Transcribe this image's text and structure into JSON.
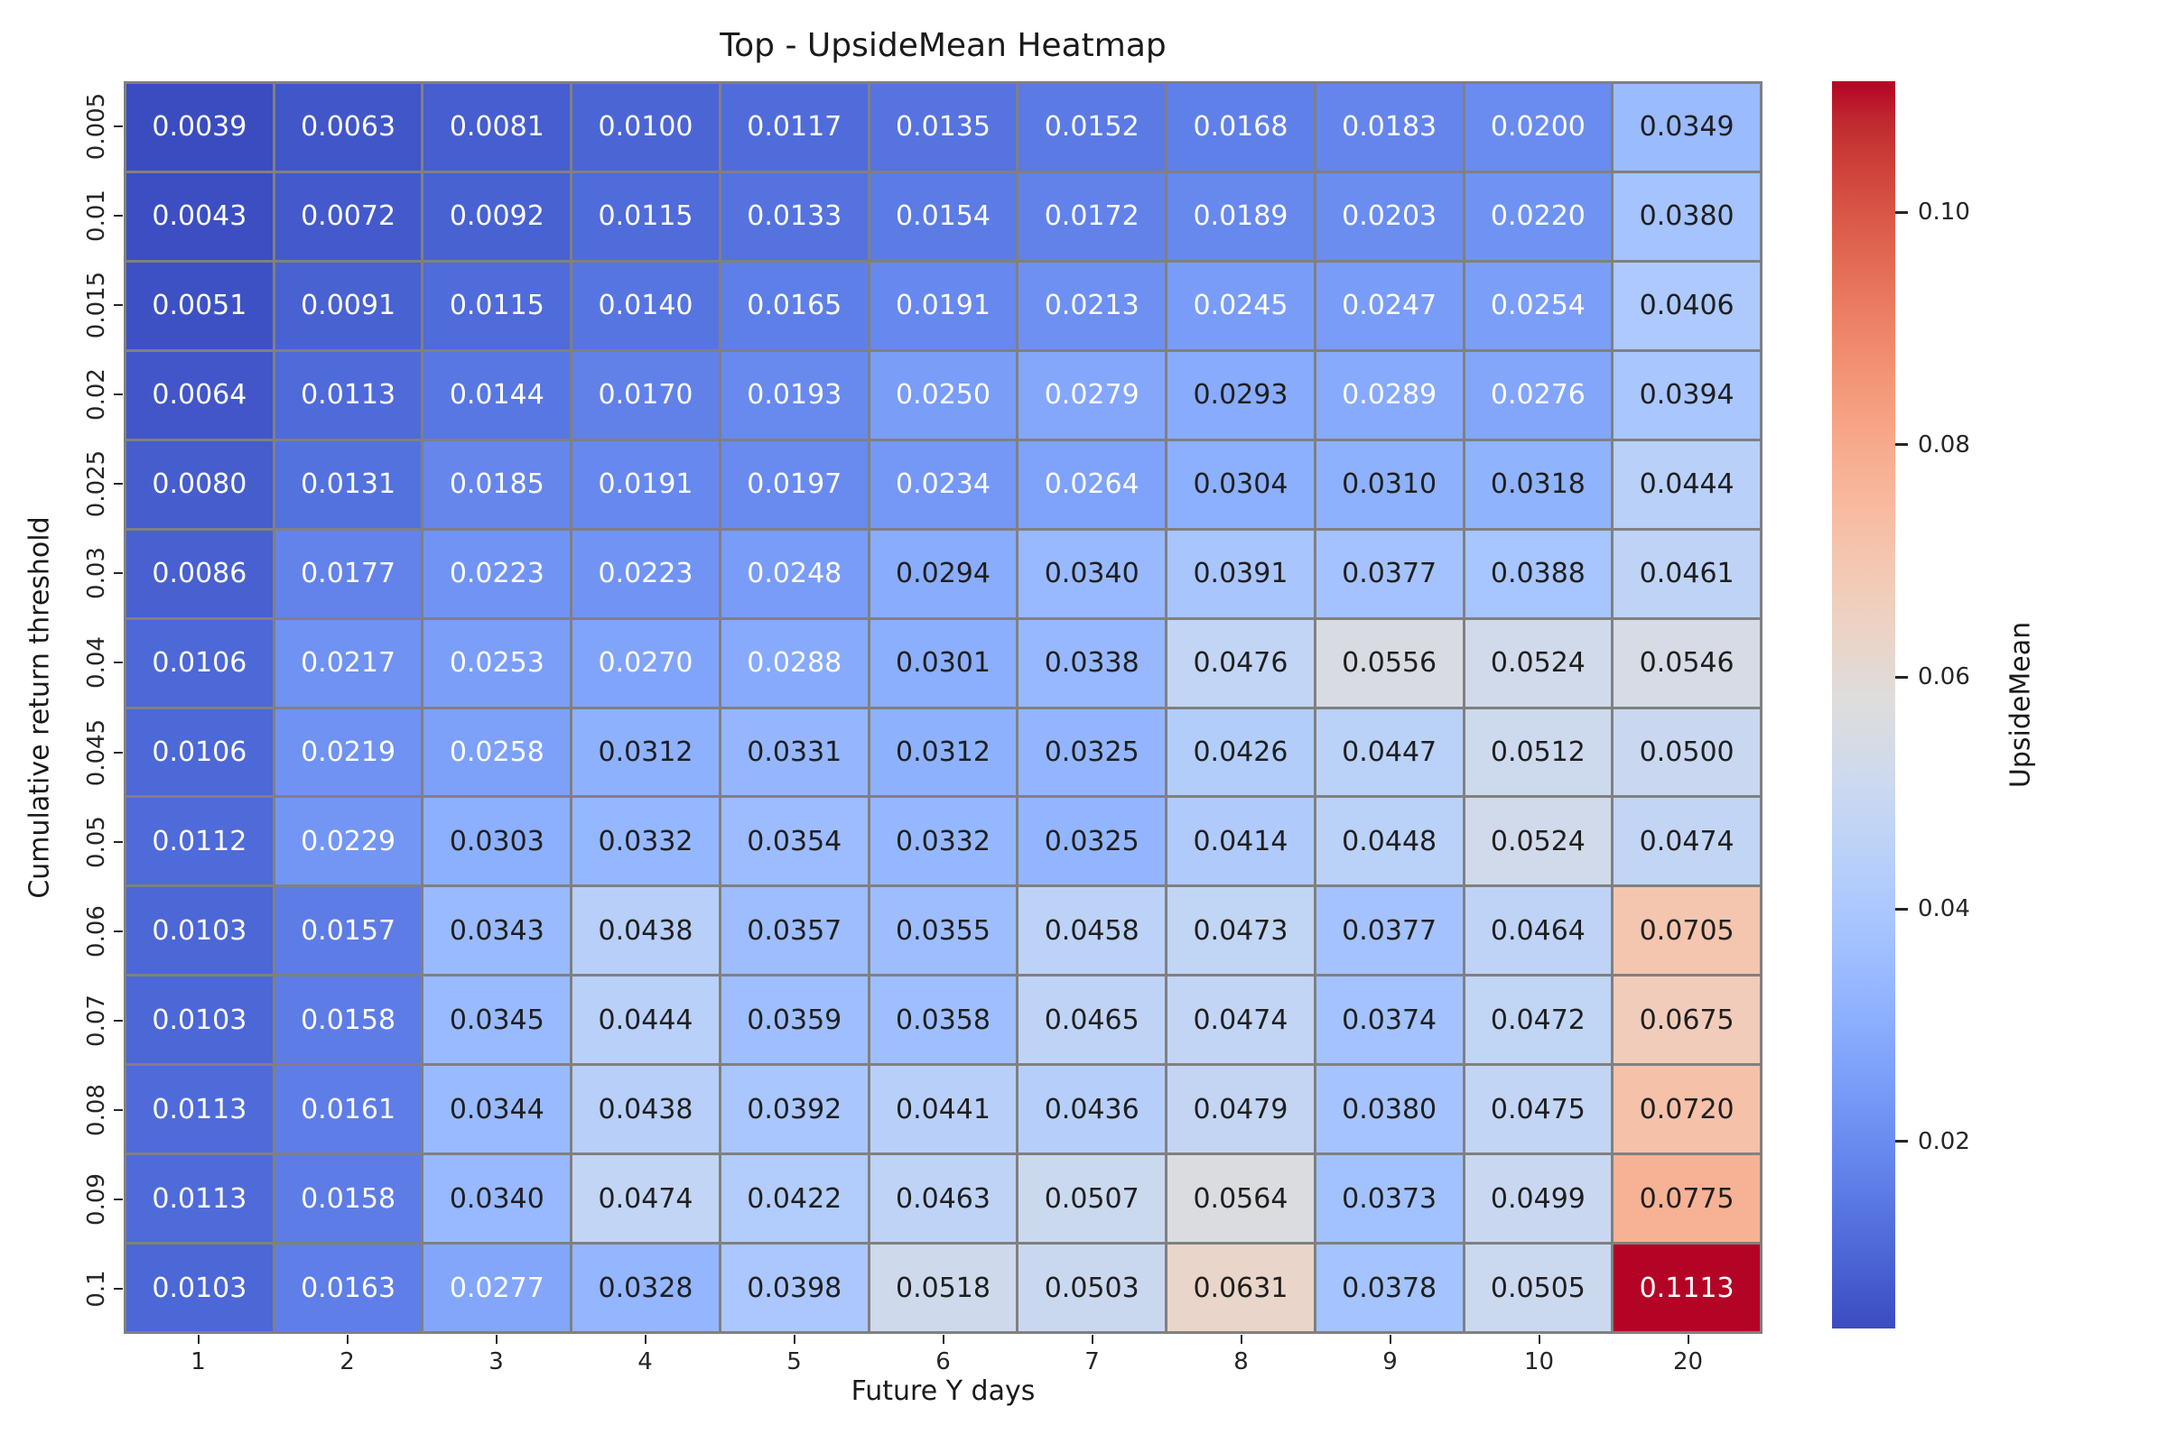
{
  "title": "Top - UpsideMean Heatmap",
  "xlabel": "Future Y days",
  "ylabel": "Cumulative return threshold",
  "colorbar": {
    "label": "UpsideMean",
    "tick_labels": [
      "0.02",
      "0.04",
      "0.06",
      "0.08",
      "0.10"
    ],
    "tick_values": [
      0.02,
      0.04,
      0.06,
      0.08,
      0.1
    ]
  },
  "colors": {
    "grid_line": "#808080",
    "background": "#ffffff",
    "annot_dark": "#1f1f1f",
    "annot_light": "#ffffff",
    "cmap_min": "#3b4cc0",
    "cmap_mid": "#dddddd",
    "cmap_max": "#b40426"
  },
  "chart_data": {
    "type": "heatmap",
    "title": "Top - UpsideMean Heatmap",
    "xlabel": "Future Y days",
    "ylabel": "Cumulative return threshold",
    "colormap": "coolwarm",
    "legend_position": "right-colorbar",
    "grid": false,
    "x_categories": [
      "1",
      "2",
      "3",
      "4",
      "5",
      "6",
      "7",
      "8",
      "9",
      "10",
      "20"
    ],
    "y_categories": [
      "0.005",
      "0.01",
      "0.015",
      "0.02",
      "0.025",
      "0.03",
      "0.04",
      "0.045",
      "0.05",
      "0.06",
      "0.07",
      "0.08",
      "0.09",
      "0.1"
    ],
    "vmin": 0.0039,
    "vmax": 0.1113,
    "annot_decimals": 4,
    "values": [
      [
        0.0039,
        0.0063,
        0.0081,
        0.01,
        0.0117,
        0.0135,
        0.0152,
        0.0168,
        0.0183,
        0.02,
        0.0349
      ],
      [
        0.0043,
        0.0072,
        0.0092,
        0.0115,
        0.0133,
        0.0154,
        0.0172,
        0.0189,
        0.0203,
        0.022,
        0.038
      ],
      [
        0.0051,
        0.0091,
        0.0115,
        0.014,
        0.0165,
        0.0191,
        0.0213,
        0.0245,
        0.0247,
        0.0254,
        0.0406
      ],
      [
        0.0064,
        0.0113,
        0.0144,
        0.017,
        0.0193,
        0.025,
        0.0279,
        0.0293,
        0.0289,
        0.0276,
        0.0394
      ],
      [
        0.008,
        0.0131,
        0.0185,
        0.0191,
        0.0197,
        0.0234,
        0.0264,
        0.0304,
        0.031,
        0.0318,
        0.0444
      ],
      [
        0.0086,
        0.0177,
        0.0223,
        0.0223,
        0.0248,
        0.0294,
        0.034,
        0.0391,
        0.0377,
        0.0388,
        0.0461
      ],
      [
        0.0106,
        0.0217,
        0.0253,
        0.027,
        0.0288,
        0.0301,
        0.0338,
        0.0476,
        0.0556,
        0.0524,
        0.0546
      ],
      [
        0.0106,
        0.0219,
        0.0258,
        0.0312,
        0.0331,
        0.0312,
        0.0325,
        0.0426,
        0.0447,
        0.0512,
        0.05
      ],
      [
        0.0112,
        0.0229,
        0.0303,
        0.0332,
        0.0354,
        0.0332,
        0.0325,
        0.0414,
        0.0448,
        0.0524,
        0.0474
      ],
      [
        0.0103,
        0.0157,
        0.0343,
        0.0438,
        0.0357,
        0.0355,
        0.0458,
        0.0473,
        0.0377,
        0.0464,
        0.0705
      ],
      [
        0.0103,
        0.0158,
        0.0345,
        0.0444,
        0.0359,
        0.0358,
        0.0465,
        0.0474,
        0.0374,
        0.0472,
        0.0675
      ],
      [
        0.0113,
        0.0161,
        0.0344,
        0.0438,
        0.0392,
        0.0441,
        0.0436,
        0.0479,
        0.038,
        0.0475,
        0.072
      ],
      [
        0.0113,
        0.0158,
        0.034,
        0.0474,
        0.0422,
        0.0463,
        0.0507,
        0.0564,
        0.0373,
        0.0499,
        0.0775
      ],
      [
        0.0103,
        0.0163,
        0.0277,
        0.0328,
        0.0398,
        0.0518,
        0.0503,
        0.0631,
        0.0378,
        0.0505,
        0.1113
      ]
    ]
  }
}
